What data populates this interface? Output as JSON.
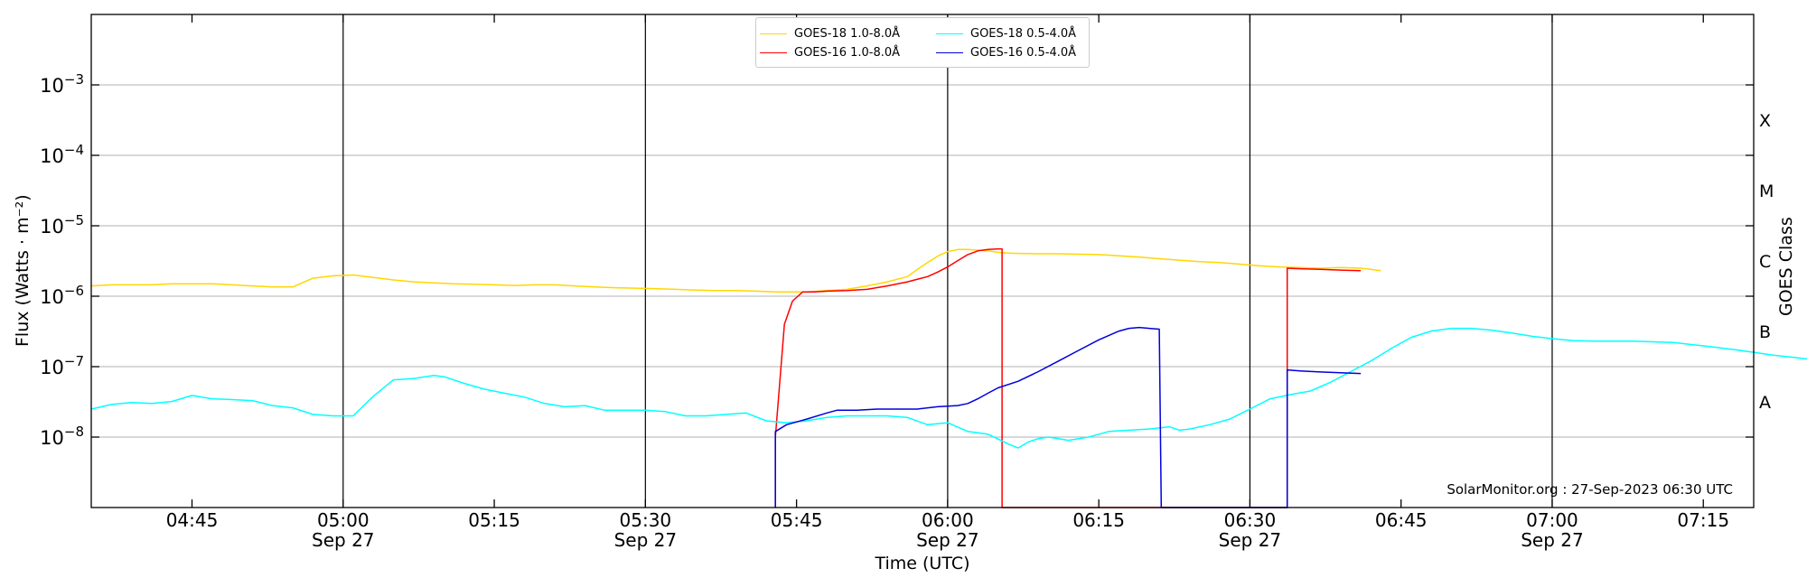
{
  "chart_data": {
    "type": "line",
    "title": "",
    "xlabel": "Time (UTC)",
    "ylabel": "Flux (Watts · m⁻²)",
    "right_ylabel": "GOES Class",
    "xlim": [
      "04:35",
      "07:20"
    ],
    "ylim": [
      1e-09,
      0.01
    ],
    "yscale": "log",
    "grid": "horizontal",
    "legend_position": "top-center",
    "x_ticks": [
      {
        "label": "04:45",
        "minute": 285,
        "date": ""
      },
      {
        "label": "05:00",
        "minute": 300,
        "date": "Sep 27"
      },
      {
        "label": "05:15",
        "minute": 315,
        "date": ""
      },
      {
        "label": "05:30",
        "minute": 330,
        "date": "Sep 27"
      },
      {
        "label": "05:45",
        "minute": 345,
        "date": ""
      },
      {
        "label": "06:00",
        "minute": 360,
        "date": "Sep 27"
      },
      {
        "label": "06:15",
        "minute": 375,
        "date": ""
      },
      {
        "label": "06:30",
        "minute": 390,
        "date": "Sep 27"
      },
      {
        "label": "06:45",
        "minute": 405,
        "date": ""
      },
      {
        "label": "07:00",
        "minute": 420,
        "date": "Sep 27"
      },
      {
        "label": "07:15",
        "minute": 435,
        "date": ""
      }
    ],
    "y_ticks": [
      {
        "base": "10",
        "exp": "−8",
        "value": 1e-08
      },
      {
        "base": "10",
        "exp": "−7",
        "value": 1e-07
      },
      {
        "base": "10",
        "exp": "−6",
        "value": 1e-06
      },
      {
        "base": "10",
        "exp": "−5",
        "value": 1e-05
      },
      {
        "base": "10",
        "exp": "−4",
        "value": 0.0001
      },
      {
        "base": "10",
        "exp": "−3",
        "value": 0.001
      }
    ],
    "vertical_lines_minutes": [
      300,
      330,
      360,
      390,
      420
    ],
    "goes_classes": [
      {
        "label": "A",
        "value": 3.16e-08
      },
      {
        "label": "B",
        "value": 3.16e-07
      },
      {
        "label": "C",
        "value": 3.16e-06
      },
      {
        "label": "M",
        "value": 3.16e-05
      },
      {
        "label": "X",
        "value": 0.000316
      }
    ],
    "series": [
      {
        "name": "GOES-18 1.0-8.0Å",
        "color": "#ffd700",
        "points": [
          [
            275,
            1.4e-06
          ],
          [
            277,
            1.45e-06
          ],
          [
            279,
            1.45e-06
          ],
          [
            281,
            1.45e-06
          ],
          [
            283,
            1.5e-06
          ],
          [
            285,
            1.5e-06
          ],
          [
            287,
            1.5e-06
          ],
          [
            289,
            1.45e-06
          ],
          [
            291,
            1.4e-06
          ],
          [
            293,
            1.35e-06
          ],
          [
            295,
            1.35e-06
          ],
          [
            297,
            1.8e-06
          ],
          [
            299,
            1.95e-06
          ],
          [
            301,
            2e-06
          ],
          [
            303,
            1.85e-06
          ],
          [
            305,
            1.7e-06
          ],
          [
            307,
            1.6e-06
          ],
          [
            309,
            1.55e-06
          ],
          [
            311,
            1.5e-06
          ],
          [
            313,
            1.48e-06
          ],
          [
            315,
            1.45e-06
          ],
          [
            317,
            1.42e-06
          ],
          [
            319,
            1.45e-06
          ],
          [
            321,
            1.45e-06
          ],
          [
            323,
            1.4e-06
          ],
          [
            325,
            1.35e-06
          ],
          [
            327,
            1.32e-06
          ],
          [
            329,
            1.3e-06
          ],
          [
            331,
            1.28e-06
          ],
          [
            333,
            1.25e-06
          ],
          [
            335,
            1.22e-06
          ],
          [
            337,
            1.2e-06
          ],
          [
            339,
            1.2e-06
          ],
          [
            341,
            1.18e-06
          ],
          [
            343,
            1.15e-06
          ],
          [
            345,
            1.15e-06
          ],
          [
            346,
            1.15e-06
          ],
          [
            348,
            1.2e-06
          ],
          [
            350,
            1.25e-06
          ],
          [
            352,
            1.4e-06
          ],
          [
            354,
            1.6e-06
          ],
          [
            356,
            1.9e-06
          ],
          [
            357,
            2.4e-06
          ],
          [
            358,
            3e-06
          ],
          [
            359,
            3.7e-06
          ],
          [
            360,
            4.3e-06
          ],
          [
            361,
            4.6e-06
          ],
          [
            362,
            4.6e-06
          ],
          [
            363,
            4.5e-06
          ],
          [
            364,
            4.4e-06
          ],
          [
            365,
            4.2e-06
          ],
          [
            366,
            4.1e-06
          ],
          [
            367,
            4.05e-06
          ],
          [
            369,
            4e-06
          ],
          [
            371,
            4e-06
          ],
          [
            373,
            3.95e-06
          ],
          [
            375,
            3.9e-06
          ],
          [
            377,
            3.75e-06
          ],
          [
            379,
            3.6e-06
          ],
          [
            381,
            3.4e-06
          ],
          [
            383,
            3.25e-06
          ],
          [
            385,
            3.1e-06
          ],
          [
            387,
            3e-06
          ],
          [
            389,
            2.85e-06
          ],
          [
            391,
            2.7e-06
          ],
          [
            393,
            2.6e-06
          ],
          [
            395,
            2.55e-06
          ],
          [
            397,
            2.5e-06
          ],
          [
            399,
            2.55e-06
          ],
          [
            401,
            2.5e-06
          ],
          [
            402,
            2.4e-06
          ],
          [
            403,
            2.3e-06
          ]
        ]
      },
      {
        "name": "GOES-16 1.0-8.0Å",
        "color": "#ff0000",
        "points": [
          [
            342.9,
            1e-09
          ],
          [
            342.9,
            1e-08
          ],
          [
            343.8,
            4e-07
          ],
          [
            344.6,
            8.5e-07
          ],
          [
            345.6,
            1.15e-06
          ],
          [
            346.8,
            1.15e-06
          ],
          [
            348,
            1.18e-06
          ],
          [
            350,
            1.2e-06
          ],
          [
            352,
            1.25e-06
          ],
          [
            354,
            1.4e-06
          ],
          [
            356,
            1.6e-06
          ],
          [
            358,
            1.9e-06
          ],
          [
            359,
            2.2e-06
          ],
          [
            360,
            2.6e-06
          ],
          [
            361,
            3.2e-06
          ],
          [
            362,
            3.9e-06
          ],
          [
            363,
            4.4e-06
          ],
          [
            364,
            4.6e-06
          ],
          [
            365,
            4.7e-06
          ],
          [
            365.4,
            4.7e-06
          ],
          [
            365.4,
            1e-09
          ],
          [
            393.7,
            1e-09
          ],
          [
            393.7,
            2.5e-06
          ],
          [
            395,
            2.45e-06
          ],
          [
            397,
            2.4e-06
          ],
          [
            399,
            2.35e-06
          ],
          [
            401,
            2.3e-06
          ]
        ]
      },
      {
        "name": "GOES-18 0.5-4.0Å",
        "color": "#00ffff",
        "points": [
          [
            275,
            2.5e-08
          ],
          [
            277,
            2.9e-08
          ],
          [
            279,
            3.1e-08
          ],
          [
            281,
            3e-08
          ],
          [
            283,
            3.2e-08
          ],
          [
            285,
            3.9e-08
          ],
          [
            287,
            3.5e-08
          ],
          [
            289,
            3.4e-08
          ],
          [
            291,
            3.3e-08
          ],
          [
            293,
            2.8e-08
          ],
          [
            295,
            2.6e-08
          ],
          [
            297,
            2.1e-08
          ],
          [
            299,
            2e-08
          ],
          [
            301,
            2e-08
          ],
          [
            303,
            3.8e-08
          ],
          [
            305,
            6.5e-08
          ],
          [
            307,
            6.8e-08
          ],
          [
            309,
            7.5e-08
          ],
          [
            310,
            7.2e-08
          ],
          [
            312,
            5.8e-08
          ],
          [
            314,
            4.8e-08
          ],
          [
            316,
            4.2e-08
          ],
          [
            318,
            3.7e-08
          ],
          [
            320,
            3e-08
          ],
          [
            322,
            2.7e-08
          ],
          [
            324,
            2.8e-08
          ],
          [
            326,
            2.4e-08
          ],
          [
            328,
            2.4e-08
          ],
          [
            330,
            2.4e-08
          ],
          [
            332,
            2.3e-08
          ],
          [
            334,
            2e-08
          ],
          [
            336,
            2e-08
          ],
          [
            338,
            2.1e-08
          ],
          [
            340,
            2.2e-08
          ],
          [
            342,
            1.7e-08
          ],
          [
            344,
            1.6e-08
          ],
          [
            346,
            1.7e-08
          ],
          [
            348,
            1.9e-08
          ],
          [
            350,
            2e-08
          ],
          [
            352,
            2e-08
          ],
          [
            354,
            2e-08
          ],
          [
            356,
            1.9e-08
          ],
          [
            358,
            1.5e-08
          ],
          [
            360,
            1.6e-08
          ],
          [
            362,
            1.2e-08
          ],
          [
            364,
            1.1e-08
          ],
          [
            366,
            8e-09
          ],
          [
            367,
            7e-09
          ],
          [
            368,
            8.5e-09
          ],
          [
            369,
            9.5e-09
          ],
          [
            370,
            1e-08
          ],
          [
            371,
            9.5e-09
          ],
          [
            372,
            9e-09
          ],
          [
            373,
            9.5e-09
          ],
          [
            374,
            1e-08
          ],
          [
            375,
            1.1e-08
          ],
          [
            376,
            1.2e-08
          ],
          [
            378,
            1.25e-08
          ],
          [
            380,
            1.3e-08
          ],
          [
            382,
            1.4e-08
          ],
          [
            383,
            1.25e-08
          ],
          [
            384,
            1.3e-08
          ],
          [
            386,
            1.5e-08
          ],
          [
            388,
            1.8e-08
          ],
          [
            390,
            2.5e-08
          ],
          [
            392,
            3.5e-08
          ],
          [
            394,
            4e-08
          ],
          [
            396,
            4.5e-08
          ],
          [
            398,
            6e-08
          ],
          [
            400,
            8.5e-08
          ],
          [
            402,
            1.2e-07
          ],
          [
            404,
            1.8e-07
          ],
          [
            406,
            2.6e-07
          ],
          [
            408,
            3.2e-07
          ],
          [
            410,
            3.5e-07
          ],
          [
            412,
            3.5e-07
          ],
          [
            414,
            3.3e-07
          ],
          [
            416,
            3e-07
          ],
          [
            418,
            2.7e-07
          ],
          [
            420,
            2.5e-07
          ],
          [
            422,
            2.35e-07
          ],
          [
            424,
            2.3e-07
          ],
          [
            426,
            2.3e-07
          ],
          [
            428,
            2.3e-07
          ],
          [
            430,
            2.25e-07
          ],
          [
            432,
            2.2e-07
          ],
          [
            434,
            2.05e-07
          ],
          [
            436,
            1.9e-07
          ],
          [
            438,
            1.75e-07
          ],
          [
            440,
            1.6e-07
          ],
          [
            442,
            1.45e-07
          ],
          [
            444,
            1.35e-07
          ],
          [
            446,
            1.25e-07
          ],
          [
            448,
            1.1e-07
          ],
          [
            450,
            1.05e-07
          ],
          [
            452,
            9.5e-08
          ],
          [
            454,
            8.8e-08
          ],
          [
            456,
            8.5e-08
          ],
          [
            458,
            8e-08
          ],
          [
            460,
            7.8e-08
          ],
          [
            462,
            7.6e-08
          ],
          [
            464,
            7.3e-08
          ],
          [
            466,
            7.5e-08
          ],
          [
            468,
            7e-08
          ],
          [
            470,
            6.8e-08
          ],
          [
            472,
            6.5e-08
          ],
          [
            474,
            6e-08
          ],
          [
            476,
            5.8e-08
          ]
        ]
      },
      {
        "name": "GOES-16 0.5-4.0Å",
        "color": "#0000dd",
        "points": [
          [
            342.9,
            1e-09
          ],
          [
            342.9,
            1.2e-08
          ],
          [
            344,
            1.5e-08
          ],
          [
            346,
            1.8e-08
          ],
          [
            348,
            2.2e-08
          ],
          [
            349,
            2.4e-08
          ],
          [
            351,
            2.4e-08
          ],
          [
            353,
            2.5e-08
          ],
          [
            355,
            2.5e-08
          ],
          [
            357,
            2.5e-08
          ],
          [
            359,
            2.7e-08
          ],
          [
            361,
            2.8e-08
          ],
          [
            362,
            3e-08
          ],
          [
            363,
            3.5e-08
          ],
          [
            364,
            4.2e-08
          ],
          [
            365,
            5e-08
          ],
          [
            367,
            6.2e-08
          ],
          [
            369,
            8.5e-08
          ],
          [
            371,
            1.2e-07
          ],
          [
            373,
            1.7e-07
          ],
          [
            375,
            2.4e-07
          ],
          [
            377,
            3.2e-07
          ],
          [
            378,
            3.5e-07
          ],
          [
            379,
            3.6e-07
          ],
          [
            380,
            3.5e-07
          ],
          [
            381,
            3.4e-07
          ],
          [
            381.2,
            1e-09
          ],
          [
            383,
            1e-09
          ],
          [
            383,
            1e-09
          ],
          [
            383,
            1e-09
          ],
          [
            383,
            1e-09
          ],
          [
            393.7,
            1e-09
          ],
          [
            393.7,
            9e-08
          ],
          [
            395,
            8.7e-08
          ],
          [
            397,
            8.4e-08
          ],
          [
            399,
            8.2e-08
          ],
          [
            401,
            8e-08
          ]
        ]
      }
    ],
    "annotation": "SolarMonitor.org : 27-Sep-2023 06:30 UTC"
  }
}
